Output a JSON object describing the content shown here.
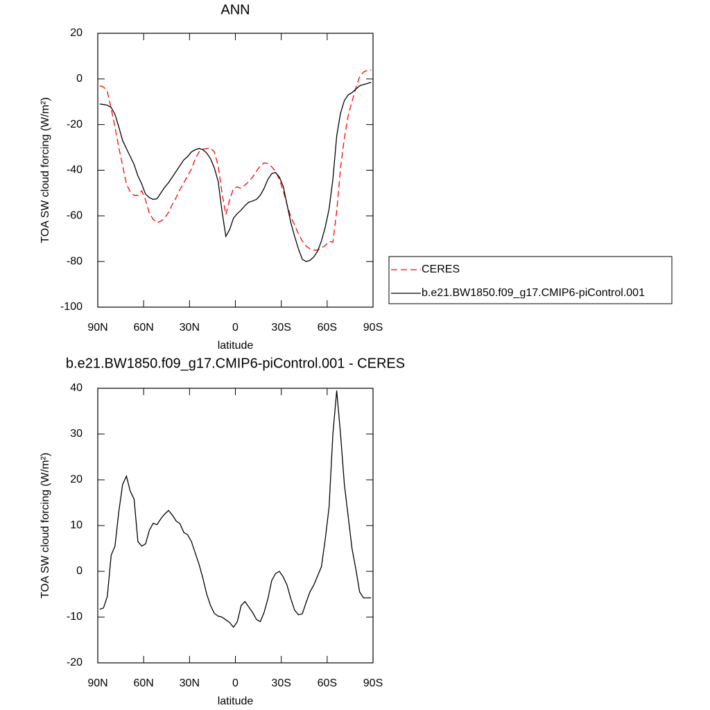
{
  "chart_data": [
    {
      "type": "line",
      "title": "ANN",
      "xlabel": "latitude",
      "ylabel": "TOA SW cloud forcing (W/m²)",
      "x": [
        88.75,
        86.25,
        83.75,
        81.25,
        78.75,
        76.25,
        73.75,
        71.25,
        68.75,
        66.25,
        63.75,
        61.25,
        58.75,
        56.25,
        53.75,
        51.25,
        48.75,
        46.25,
        43.75,
        41.25,
        38.75,
        36.25,
        33.75,
        31.25,
        28.75,
        26.25,
        23.75,
        21.25,
        18.75,
        16.25,
        13.75,
        11.25,
        8.75,
        6.25,
        3.75,
        1.25,
        -1.25,
        -3.75,
        -6.25,
        -8.75,
        -11.25,
        -13.75,
        -16.25,
        -18.75,
        -21.25,
        -23.75,
        -26.25,
        -28.75,
        -31.25,
        -33.75,
        -36.25,
        -38.75,
        -41.25,
        -43.75,
        -46.25,
        -48.75,
        -51.25,
        -53.75,
        -56.25,
        -58.75,
        -61.25,
        -63.75,
        -66.25,
        -68.75,
        -71.25,
        -73.75,
        -76.25,
        -78.75,
        -81.25,
        -83.75,
        -86.25,
        -88.75
      ],
      "series": [
        {
          "name": "CERES",
          "color": "#ff0000",
          "style": "dashed",
          "values": [
            -3,
            -3.5,
            -5.5,
            -13,
            -21,
            -30,
            -38,
            -46,
            -49.5,
            -51,
            -51,
            -49,
            -53,
            -59,
            -61.5,
            -63,
            -62.3,
            -61,
            -58.5,
            -55,
            -52,
            -48.5,
            -45.5,
            -42.5,
            -39.5,
            -35,
            -32,
            -30.8,
            -30.5,
            -30.2,
            -32,
            -38,
            -50,
            -59.5,
            -53,
            -48,
            -47.3,
            -48,
            -46.5,
            -45,
            -43,
            -40.5,
            -38,
            -36.8,
            -37,
            -38.5,
            -40.5,
            -44,
            -49,
            -55,
            -60.5,
            -64,
            -68,
            -71,
            -73.2,
            -74.5,
            -75,
            -75,
            -74,
            -73,
            -71.2,
            -71.5,
            -58,
            -39,
            -26,
            -16,
            -10,
            -4,
            1,
            3,
            3.8,
            4
          ]
        },
        {
          "name": "b.e21.BW1850.f09_g17.CMIP6-piControl.001",
          "color": "#000000",
          "style": "solid",
          "values": [
            -11,
            -11.2,
            -11.5,
            -12.5,
            -15.5,
            -21,
            -27,
            -30.5,
            -34,
            -37.5,
            -42.5,
            -46,
            -50.5,
            -52,
            -52.8,
            -52.5,
            -50,
            -47.5,
            -45.5,
            -43,
            -40.5,
            -38,
            -35.5,
            -34,
            -32,
            -31,
            -30.5,
            -31,
            -32.5,
            -35,
            -39,
            -45,
            -58,
            -69,
            -66,
            -61,
            -59,
            -57.5,
            -55.5,
            -54,
            -53.5,
            -52.8,
            -51,
            -48,
            -44,
            -41.5,
            -41,
            -43,
            -47,
            -55,
            -63,
            -69,
            -74.5,
            -79,
            -80,
            -79.5,
            -78,
            -75.5,
            -71,
            -65,
            -57,
            -44,
            -25,
            -15,
            -9.5,
            -7,
            -6,
            -4.5,
            -3,
            -2.5,
            -2,
            -1.5
          ]
        }
      ],
      "xlim": [
        90,
        -90
      ],
      "xticks": [
        {
          "value": 90,
          "label": "90N"
        },
        {
          "value": 60,
          "label": "60N"
        },
        {
          "value": 30,
          "label": "30N"
        },
        0,
        {
          "value": -30,
          "label": "30S"
        },
        {
          "value": -60,
          "label": "60S"
        },
        {
          "value": -90,
          "label": "90S"
        }
      ],
      "ylim": [
        -100,
        20
      ],
      "yticks": [
        -100,
        -80,
        -60,
        -40,
        -20,
        0,
        20
      ],
      "legend": "right"
    },
    {
      "type": "line",
      "title": "b.e21.BW1850.f09_g17.CMIP6-piControl.001 - CERES",
      "xlabel": "latitude",
      "ylabel": "TOA SW cloud forcing (W/m²)",
      "x": [
        88.75,
        86.25,
        83.75,
        81.25,
        78.75,
        76.25,
        73.75,
        71.25,
        68.75,
        66.25,
        63.75,
        61.25,
        58.75,
        56.25,
        53.75,
        51.25,
        48.75,
        46.25,
        43.75,
        41.25,
        38.75,
        36.25,
        33.75,
        31.25,
        28.75,
        26.25,
        23.75,
        21.25,
        18.75,
        16.25,
        13.75,
        11.25,
        8.75,
        6.25,
        3.75,
        1.25,
        -1.25,
        -3.75,
        -6.25,
        -8.75,
        -11.25,
        -13.75,
        -16.25,
        -18.75,
        -21.25,
        -23.75,
        -26.25,
        -28.75,
        -31.25,
        -33.75,
        -36.25,
        -38.75,
        -41.25,
        -43.75,
        -46.25,
        -48.75,
        -51.25,
        -53.75,
        -56.25,
        -58.75,
        -61.25,
        -63.75,
        -66.25,
        -68.75,
        -71.25,
        -73.75,
        -76.25,
        -78.75,
        -81.25,
        -83.75,
        -86.25,
        -88.75
      ],
      "series": [
        {
          "color": "#000000",
          "style": "solid",
          "values": [
            -8.3,
            -8,
            -5.5,
            3.5,
            5.5,
            13,
            19,
            20.8,
            17.5,
            15.8,
            6.5,
            5.5,
            6,
            9,
            10.5,
            10.2,
            11.5,
            12.5,
            13.3,
            12.3,
            11,
            10.4,
            8.5,
            8,
            6.5,
            4,
            1.5,
            -1.5,
            -5,
            -7.5,
            -9.2,
            -9.8,
            -10,
            -10.6,
            -11.2,
            -12.2,
            -11,
            -7.5,
            -6.6,
            -7.8,
            -9,
            -10.5,
            -11,
            -9,
            -6,
            -2,
            -0.5,
            0,
            -1.2,
            -3,
            -6,
            -8.5,
            -9.5,
            -9.3,
            -6.8,
            -4.5,
            -3,
            -1,
            1,
            7,
            14,
            30,
            39.5,
            30,
            19,
            12,
            5,
            0.5,
            -4.5,
            -5.8,
            -5.8,
            -5.8
          ]
        }
      ],
      "xlim": [
        90,
        -90
      ],
      "xticks": [
        {
          "value": 90,
          "label": "90N"
        },
        {
          "value": 60,
          "label": "60N"
        },
        {
          "value": 30,
          "label": "30N"
        },
        0,
        {
          "value": -30,
          "label": "30S"
        },
        {
          "value": -60,
          "label": "60S"
        },
        {
          "value": -90,
          "label": "90S"
        }
      ],
      "ylim": [
        -20,
        40
      ],
      "yticks": [
        -20,
        -10,
        0,
        10,
        20,
        30,
        40
      ]
    }
  ]
}
